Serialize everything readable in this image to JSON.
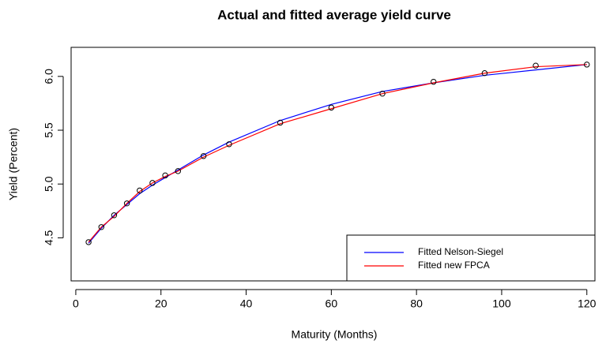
{
  "chart_data": {
    "type": "line",
    "title": "Actual and fitted average yield curve",
    "x_label": "Maturity (Months)",
    "y_label": "Yield (Percent)",
    "x": [
      3,
      6,
      9,
      12,
      15,
      18,
      21,
      24,
      30,
      36,
      48,
      60,
      72,
      84,
      96,
      108,
      120
    ],
    "points": {
      "color": "black",
      "values": [
        4.46,
        4.6,
        4.71,
        4.82,
        4.94,
        5.01,
        5.08,
        5.12,
        5.26,
        5.37,
        5.57,
        5.71,
        5.84,
        5.95,
        6.03,
        6.1,
        6.11
      ]
    },
    "series": [
      {
        "name": "Fitted Nelson-Siegel",
        "color": "blue",
        "values": [
          4.45,
          4.59,
          4.71,
          4.81,
          4.91,
          4.99,
          5.06,
          5.13,
          5.27,
          5.39,
          5.59,
          5.74,
          5.86,
          5.94,
          6.01,
          6.06,
          6.11
        ]
      },
      {
        "name": "Fitted new FPCA",
        "color": "red",
        "values": [
          4.46,
          4.6,
          4.7,
          4.82,
          4.93,
          5.01,
          5.07,
          5.12,
          5.25,
          5.36,
          5.56,
          5.7,
          5.84,
          5.94,
          6.03,
          6.09,
          6.11
        ]
      }
    ],
    "xlim": [
      -1.1,
      121.9
    ],
    "ylim": [
      4.1,
      6.27
    ],
    "xticks": [
      0,
      20,
      40,
      60,
      80,
      100,
      120
    ],
    "yticks": [
      4.5,
      {
        "value": 5,
        "label": "5.0"
      },
      5.5,
      {
        "value": 6,
        "label": "6.0"
      }
    ],
    "legend": "bottomright"
  }
}
